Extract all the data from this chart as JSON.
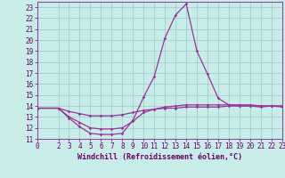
{
  "xlabel": "Windchill (Refroidissement éolien,°C)",
  "bg_color": "#c8ede8",
  "grid_color": "#9ecece",
  "line_color": "#993399",
  "spine_color": "#993399",
  "tick_color": "#660066",
  "xlim": [
    0,
    23
  ],
  "ylim": [
    11,
    23.5
  ],
  "xticks": [
    0,
    2,
    3,
    4,
    5,
    6,
    7,
    8,
    9,
    10,
    11,
    12,
    13,
    14,
    15,
    16,
    17,
    18,
    19,
    20,
    21,
    22,
    23
  ],
  "yticks": [
    11,
    12,
    13,
    14,
    15,
    16,
    17,
    18,
    19,
    20,
    21,
    22,
    23
  ],
  "curve1_x": [
    0,
    2,
    3,
    4,
    5,
    6,
    7,
    8,
    9,
    10,
    11,
    12,
    13,
    14,
    15,
    16,
    17,
    18,
    19,
    20,
    21,
    22,
    23
  ],
  "curve1_y": [
    13.8,
    13.8,
    12.9,
    12.1,
    11.5,
    11.4,
    11.4,
    11.5,
    12.7,
    14.8,
    16.7,
    20.2,
    22.3,
    23.3,
    19.0,
    16.9,
    14.7,
    14.1,
    14.0,
    14.0,
    13.9,
    14.0,
    13.9
  ],
  "curve2_x": [
    0,
    2,
    3,
    4,
    5,
    6,
    7,
    8,
    9,
    10,
    11,
    12,
    13,
    14,
    15,
    16,
    17,
    18,
    19,
    20,
    21,
    22,
    23
  ],
  "curve2_y": [
    13.8,
    13.8,
    13.0,
    12.5,
    12.0,
    11.9,
    11.9,
    12.0,
    12.6,
    13.4,
    13.7,
    13.9,
    14.0,
    14.1,
    14.1,
    14.1,
    14.1,
    14.1,
    14.1,
    14.1,
    14.0,
    14.0,
    14.0
  ],
  "curve3_x": [
    0,
    2,
    3,
    4,
    5,
    6,
    7,
    8,
    9,
    10,
    11,
    12,
    13,
    14,
    15,
    16,
    17,
    18,
    19,
    20,
    21,
    22,
    23
  ],
  "curve3_y": [
    13.8,
    13.8,
    13.5,
    13.3,
    13.1,
    13.1,
    13.1,
    13.2,
    13.4,
    13.6,
    13.7,
    13.8,
    13.8,
    13.9,
    13.9,
    13.9,
    13.9,
    14.0,
    14.0,
    14.0,
    14.0,
    14.0,
    14.0
  ],
  "marker_size": 1.8,
  "line_width": 0.9,
  "tick_fontsize": 5.5,
  "xlabel_fontsize": 6.0
}
